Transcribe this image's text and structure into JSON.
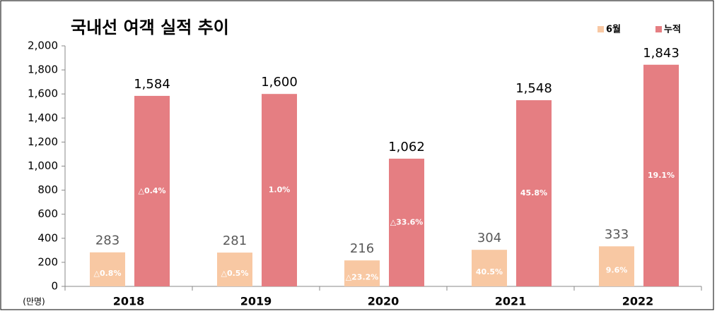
{
  "chart_data": {
    "type": "bar",
    "title": "국내선 여객 실적 추이",
    "unit_label": "(만명)",
    "categories": [
      "2018",
      "2019",
      "2020",
      "2021",
      "2022"
    ],
    "series": [
      {
        "name": "6월",
        "color": "#f8c8a3",
        "values": [
          283,
          281,
          216,
          304,
          333
        ],
        "annotations": [
          "△0.8%",
          "△0.5%",
          "△23.2%",
          "40.5%",
          "9.6%"
        ]
      },
      {
        "name": "누적",
        "color": "#e57e82",
        "values": [
          1584,
          1600,
          1062,
          1548,
          1843
        ],
        "value_labels": [
          "1,584",
          "1,600",
          "1,062",
          "1,548",
          "1,843"
        ],
        "annotations": [
          "△0.4%",
          "1.0%",
          "△33.6%",
          "45.8%",
          "19.1%"
        ]
      }
    ],
    "ylim": [
      0,
      2000
    ],
    "yticks": [
      0,
      200,
      400,
      600,
      800,
      {
        "value": 1000,
        "label": "1,000"
      },
      {
        "value": 1200,
        "label": "1,200"
      },
      {
        "value": 1400,
        "label": "1,400"
      },
      {
        "value": 1600,
        "label": "1,600"
      },
      {
        "value": 1800,
        "label": "1,800"
      },
      {
        "value": 2000,
        "label": "2,000"
      }
    ],
    "legend": "top-right"
  }
}
